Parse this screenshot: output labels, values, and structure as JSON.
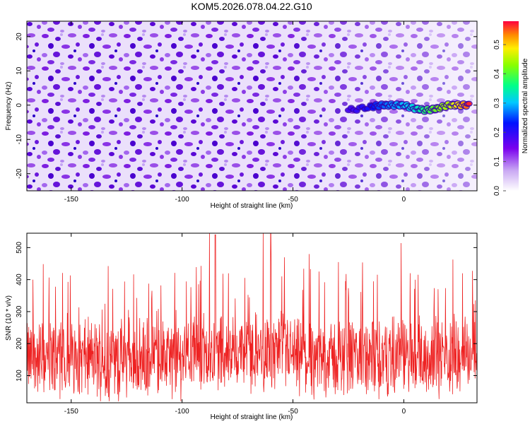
{
  "title": "KOM5.2026.078.04.22.G10",
  "colors": {
    "background": "#ffffff",
    "snr_line": "#ee2222",
    "ridge_start": "#7700dd",
    "ridge_end": "#ff2020"
  },
  "chart_data": [
    {
      "type": "heatmap",
      "name": "spectrogram",
      "xlabel": "Height of straight line (km)",
      "ylabel": "Frequency (Hz)",
      "xlim": [
        -170,
        33
      ],
      "ylim": [
        -25,
        24.5
      ],
      "xticks": [
        -150,
        -100,
        -50,
        0
      ],
      "xtick_labels": [
        "-150",
        "-100",
        "-50",
        "0"
      ],
      "yticks": [
        -20,
        -10,
        0,
        10,
        20
      ],
      "ytick_labels": [
        "-20",
        "-10",
        "0",
        "10",
        "20"
      ],
      "ridge": {
        "description": "high-amplitude signal near 0 Hz",
        "x": [
          -25,
          -15,
          -10,
          -5,
          0,
          5,
          10,
          15,
          20,
          25,
          30
        ],
        "y": [
          -1.5,
          -0.5,
          0,
          0,
          0,
          -1,
          -1.5,
          -1,
          0,
          0,
          0
        ],
        "amplitude": [
          0.18,
          0.22,
          0.26,
          0.28,
          0.3,
          0.32,
          0.38,
          0.42,
          0.45,
          0.5,
          0.58
        ]
      },
      "colorbar": {
        "label": "Normalized spectral amplitude",
        "range": [
          0.0,
          0.58
        ],
        "ticks": [
          0.0,
          0.1,
          0.2,
          0.3,
          0.4,
          0.5
        ],
        "tick_labels": [
          "0.0",
          "0.1",
          "0.2",
          "0.3",
          "0.4",
          "0.5"
        ]
      }
    },
    {
      "type": "line",
      "name": "snr",
      "xlabel": "Height of straight line (km)",
      "ylabel": "SNR (10 * v/v)",
      "xlim": [
        -170,
        33
      ],
      "ylim": [
        15,
        545
      ],
      "xticks": [
        -150,
        -100,
        -50,
        0
      ],
      "xtick_labels": [
        "-150",
        "-100",
        "-50",
        "0"
      ],
      "yticks": [
        100,
        200,
        300,
        400,
        500
      ],
      "ytick_labels": [
        "100",
        "200",
        "300",
        "400",
        "500"
      ],
      "series": [
        {
          "name": "SNR",
          "description": "dense noisy trace, baseline about 140-160, peaks near 540",
          "x": [
            -170,
            -150,
            -130,
            -110,
            -100,
            -85,
            -70,
            -60,
            -50,
            -30,
            -10,
            0,
            15,
            30,
            33
          ],
          "y": [
            150,
            160,
            145,
            155,
            150,
            540,
            150,
            545,
            150,
            155,
            150,
            160,
            155,
            170,
            160
          ]
        }
      ]
    }
  ]
}
